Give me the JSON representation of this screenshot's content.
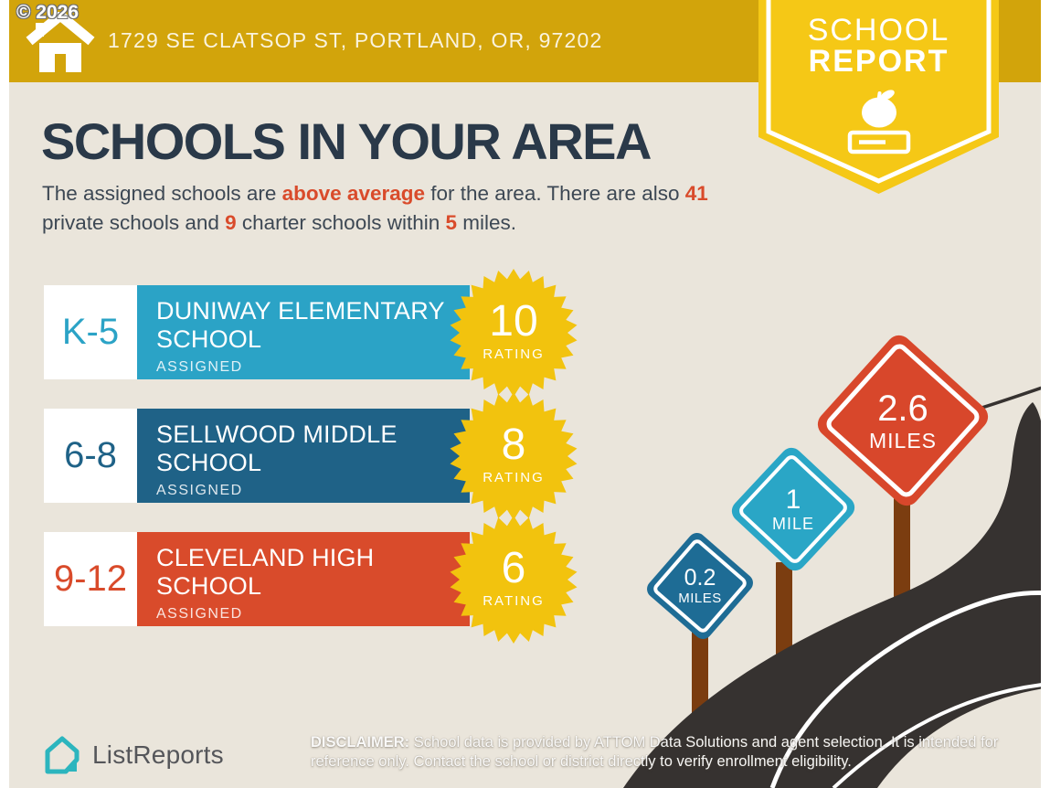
{
  "watermark": "© 2026",
  "header": {
    "address": "1729 SE CLATSOP ST, PORTLAND, OR, 97202",
    "ribbon": {
      "line1": "SCHOOL",
      "line2": "REPORT"
    }
  },
  "title": "SCHOOLS IN YOUR AREA",
  "intro": {
    "l1a": "The assigned schools are ",
    "l1b": "above average",
    "l1c": " for the area. There are also ",
    "l2b": "41",
    "l2c": " private schools and ",
    "l2d": "9",
    "l2e": " charter schools within ",
    "l2f": "5",
    "l2g": " miles."
  },
  "schools": [
    {
      "grades": "K-5",
      "name": "DUNIWAY ELEMENTARY SCHOOL",
      "status": "ASSIGNED",
      "rating": "10",
      "rating_label": "RATING",
      "color": "#2BA3C6"
    },
    {
      "grades": "6-8",
      "name": "SELLWOOD MIDDLE SCHOOL",
      "status": "ASSIGNED",
      "rating": "8",
      "rating_label": "RATING",
      "color": "#1F6287"
    },
    {
      "grades": "9-12",
      "name": "CLEVELAND HIGH SCHOOL",
      "status": "ASSIGNED",
      "rating": "6",
      "rating_label": "RATING",
      "color": "#D94B2B"
    }
  ],
  "signs": [
    {
      "value": "2.6",
      "unit": "MILES",
      "color": "#D8472B"
    },
    {
      "value": "1",
      "unit": "MILE",
      "color": "#2AA6C6"
    },
    {
      "value": "0.2",
      "unit": "MILES",
      "color": "#1E6C95"
    }
  ],
  "footer": {
    "logo_text": "ListReports",
    "disclaimer_label": "DISCLAIMER:",
    "disclaimer_text": " School data is provided by ATTOM Data Solutions and agent selection. It is intended for reference only. Contact the school or district directly to verify enrollment eligibility."
  },
  "colors": {
    "canvas_beige": "#EAE5DB",
    "banner_gold": "#D2A40B",
    "ribbon_yellow": "#F5C816",
    "badge_yellow": "#F2C30E",
    "accent_red": "#D94B2B",
    "title_navy": "#2A3949",
    "road_dark": "#363230",
    "post_brown": "#7B3D10",
    "logo_teal": "#2CB5BE"
  }
}
